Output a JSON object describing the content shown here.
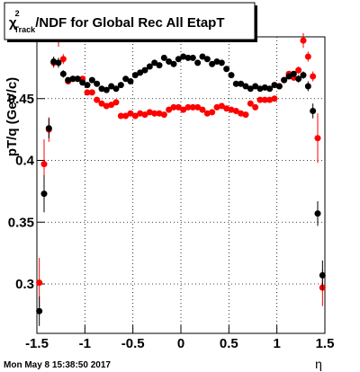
{
  "chart_data": {
    "type": "scatter",
    "title": {
      "symbol": "χ",
      "sup": "2",
      "sub": "Track",
      "text": "/NDF for Global Rec All EtapT"
    },
    "y_label": "pT/q (GeV/c)",
    "x_label": "η",
    "footer": "Mon May  8 15:38:50 2017",
    "xlim": [
      -1.5,
      1.5
    ],
    "xticks": [
      -1.5,
      -1,
      -0.5,
      0,
      0.5,
      1,
      1.5
    ],
    "ylim": [
      0.26,
      0.5
    ],
    "yticks": [
      0.3,
      0.35,
      0.4,
      0.45
    ],
    "grid": true,
    "x": [
      -1.475,
      -1.425,
      -1.375,
      -1.325,
      -1.275,
      -1.225,
      -1.175,
      -1.125,
      -1.075,
      -1.025,
      -0.975,
      -0.925,
      -0.875,
      -0.825,
      -0.775,
      -0.725,
      -0.675,
      -0.625,
      -0.575,
      -0.525,
      -0.475,
      -0.425,
      -0.375,
      -0.325,
      -0.275,
      -0.225,
      -0.175,
      -0.125,
      -0.075,
      -0.025,
      0.025,
      0.075,
      0.125,
      0.175,
      0.225,
      0.275,
      0.325,
      0.375,
      0.425,
      0.475,
      0.525,
      0.575,
      0.625,
      0.675,
      0.725,
      0.775,
      0.825,
      0.875,
      0.925,
      0.975,
      1.025,
      1.075,
      1.125,
      1.175,
      1.225,
      1.275,
      1.325,
      1.375,
      1.425,
      1.475
    ],
    "series": [
      {
        "color": "#ff0000",
        "values": [
          0.301,
          0.397,
          0.425,
          0.479,
          0.498,
          0.482,
          0.464,
          0.466,
          0.466,
          0.466,
          0.455,
          0.455,
          0.449,
          0.446,
          0.444,
          0.445,
          0.447,
          0.436,
          0.436,
          0.438,
          0.436,
          0.438,
          0.437,
          0.439,
          0.438,
          0.438,
          0.437,
          0.441,
          0.443,
          0.443,
          0.441,
          0.443,
          0.443,
          0.443,
          0.441,
          0.438,
          0.439,
          0.443,
          0.444,
          0.442,
          0.441,
          0.44,
          0.438,
          0.437,
          0.446,
          0.443,
          0.449,
          0.449,
          0.449,
          0.45,
          0.46,
          0.465,
          0.47,
          0.467,
          0.473,
          0.497,
          0.484,
          0.468,
          0.418,
          0.297
        ],
        "errors": [
          0.02,
          0.02,
          0.01,
          0.004,
          0.006,
          0.004,
          0.002,
          0.002,
          0.002,
          0.002,
          0.002,
          0.002,
          0.002,
          0.002,
          0.002,
          0.002,
          0.002,
          0.002,
          0.002,
          0.002,
          0.002,
          0.002,
          0.002,
          0.002,
          0.002,
          0.002,
          0.002,
          0.002,
          0.002,
          0.002,
          0.002,
          0.002,
          0.002,
          0.002,
          0.002,
          0.002,
          0.002,
          0.002,
          0.002,
          0.002,
          0.002,
          0.002,
          0.002,
          0.002,
          0.002,
          0.002,
          0.002,
          0.002,
          0.002,
          0.002,
          0.002,
          0.002,
          0.002,
          0.002,
          0.003,
          0.006,
          0.004,
          0.004,
          0.02,
          0.015
        ]
      },
      {
        "color": "#000000",
        "values": [
          0.278,
          0.373,
          0.426,
          0.48,
          0.479,
          0.47,
          0.465,
          0.466,
          0.466,
          0.463,
          0.461,
          0.465,
          0.462,
          0.458,
          0.457,
          0.46,
          0.458,
          0.461,
          0.466,
          0.464,
          0.469,
          0.471,
          0.473,
          0.476,
          0.479,
          0.477,
          0.483,
          0.48,
          0.478,
          0.482,
          0.484,
          0.483,
          0.483,
          0.479,
          0.484,
          0.482,
          0.478,
          0.48,
          0.479,
          0.474,
          0.469,
          0.462,
          0.462,
          0.46,
          0.458,
          0.46,
          0.458,
          0.459,
          0.458,
          0.461,
          0.46,
          0.465,
          0.468,
          0.47,
          0.466,
          0.469,
          0.46,
          0.44,
          0.357,
          0.307
        ],
        "errors": [
          0.012,
          0.015,
          0.008,
          0.004,
          0.004,
          0.003,
          0.002,
          0.002,
          0.002,
          0.002,
          0.002,
          0.002,
          0.002,
          0.002,
          0.002,
          0.002,
          0.002,
          0.002,
          0.002,
          0.002,
          0.002,
          0.002,
          0.002,
          0.002,
          0.002,
          0.002,
          0.002,
          0.002,
          0.002,
          0.002,
          0.002,
          0.002,
          0.002,
          0.002,
          0.002,
          0.002,
          0.002,
          0.002,
          0.002,
          0.002,
          0.002,
          0.002,
          0.002,
          0.002,
          0.002,
          0.002,
          0.002,
          0.002,
          0.002,
          0.002,
          0.002,
          0.002,
          0.002,
          0.002,
          0.003,
          0.003,
          0.004,
          0.006,
          0.01,
          0.012
        ]
      }
    ]
  }
}
